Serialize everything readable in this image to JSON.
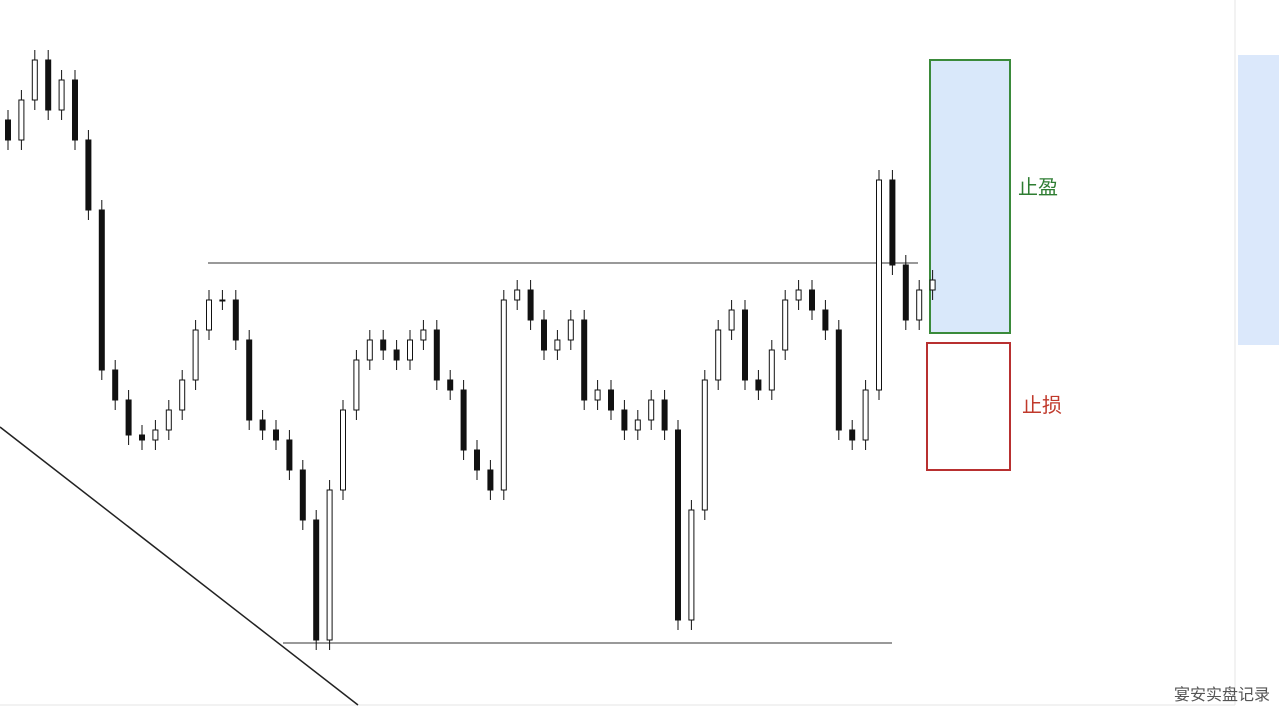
{
  "chart_data": {
    "type": "candlestick",
    "open": [
      580,
      560,
      600,
      640,
      590,
      620,
      560,
      490,
      330,
      300,
      265,
      260,
      270,
      290,
      320,
      370,
      400,
      400,
      360,
      280,
      270,
      260,
      230,
      180,
      60,
      210,
      290,
      340,
      360,
      350,
      340,
      360,
      370,
      320,
      310,
      250,
      230,
      210,
      400,
      410,
      380,
      350,
      360,
      380,
      300,
      310,
      290,
      270,
      280,
      300,
      270,
      80,
      190,
      320,
      370,
      390,
      320,
      310,
      350,
      400,
      410,
      390,
      370,
      270,
      260,
      310,
      520,
      435,
      380,
      410
    ],
    "high": [
      590,
      610,
      650,
      650,
      630,
      630,
      570,
      500,
      340,
      310,
      275,
      280,
      300,
      330,
      380,
      410,
      410,
      410,
      370,
      290,
      280,
      270,
      240,
      190,
      220,
      300,
      350,
      370,
      370,
      360,
      370,
      380,
      380,
      330,
      320,
      260,
      240,
      410,
      420,
      420,
      390,
      370,
      390,
      390,
      320,
      320,
      300,
      290,
      310,
      310,
      280,
      200,
      330,
      380,
      400,
      400,
      330,
      360,
      410,
      420,
      420,
      400,
      380,
      280,
      320,
      530,
      530,
      445,
      420,
      430
    ],
    "low": [
      550,
      550,
      590,
      580,
      580,
      550,
      480,
      320,
      290,
      255,
      250,
      250,
      260,
      280,
      310,
      360,
      390,
      350,
      270,
      260,
      250,
      220,
      170,
      50,
      50,
      200,
      280,
      330,
      340,
      330,
      330,
      350,
      310,
      300,
      240,
      220,
      200,
      200,
      390,
      370,
      340,
      340,
      350,
      290,
      290,
      280,
      260,
      260,
      270,
      260,
      70,
      70,
      180,
      310,
      360,
      310,
      300,
      300,
      340,
      390,
      380,
      360,
      260,
      250,
      250,
      300,
      425,
      370,
      370,
      400
    ],
    "close": [
      560,
      600,
      640,
      590,
      620,
      560,
      490,
      330,
      300,
      265,
      260,
      270,
      290,
      320,
      370,
      400,
      400,
      360,
      280,
      270,
      260,
      230,
      180,
      60,
      210,
      290,
      340,
      360,
      350,
      340,
      360,
      370,
      320,
      310,
      250,
      230,
      210,
      400,
      410,
      380,
      350,
      360,
      380,
      300,
      310,
      290,
      270,
      280,
      300,
      270,
      80,
      190,
      320,
      370,
      390,
      320,
      310,
      350,
      400,
      410,
      390,
      370,
      270,
      260,
      310,
      520,
      435,
      380,
      410,
      420
    ],
    "ylim": [
      0,
      700
    ],
    "resistance": 437,
    "support": 57,
    "take_profit": 640,
    "entry": 362,
    "stop_loss": 230,
    "take_profit_label": "止盈",
    "stop_loss_label": "止损",
    "watermark": "宴安实盘记录"
  }
}
